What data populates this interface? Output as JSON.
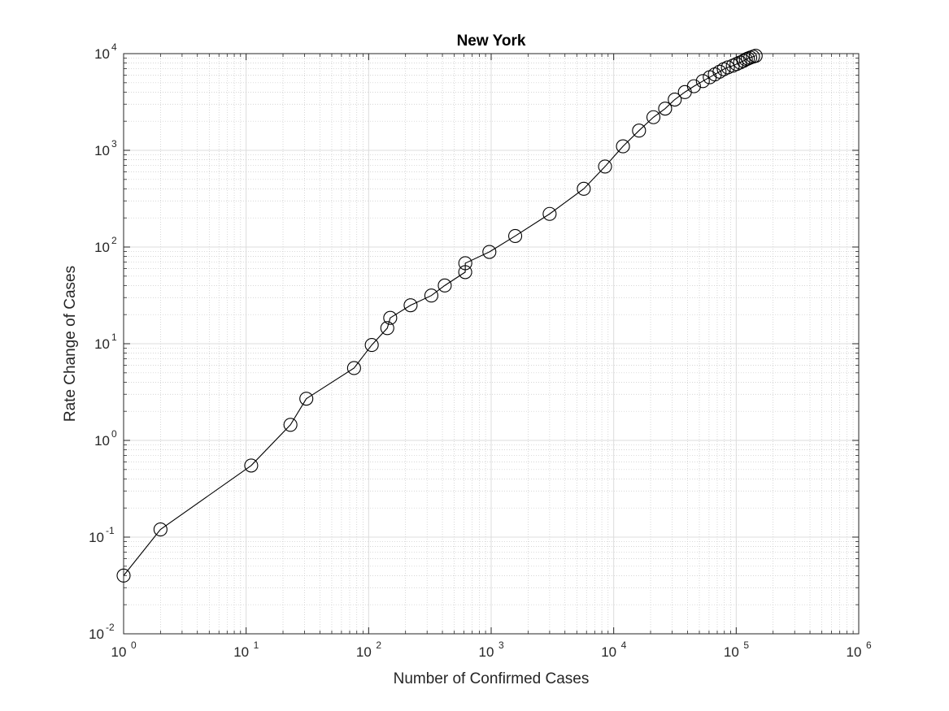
{
  "chart_data": {
    "type": "line",
    "title": "New York",
    "xlabel": "Number of Confirmed Cases",
    "ylabel": "Rate Change of Cases",
    "xscale": "log",
    "yscale": "log",
    "xlim": [
      1,
      1000000
    ],
    "ylim": [
      0.01,
      10000
    ],
    "grid": "on (major and minor)",
    "marker": "open circle",
    "line_color": "#000000",
    "x_ticks": [
      {
        "base": "10",
        "exp": "0"
      },
      {
        "base": "10",
        "exp": "1"
      },
      {
        "base": "10",
        "exp": "2"
      },
      {
        "base": "10",
        "exp": "3"
      },
      {
        "base": "10",
        "exp": "4"
      },
      {
        "base": "10",
        "exp": "5"
      },
      {
        "base": "10",
        "exp": "6"
      }
    ],
    "y_ticks": [
      {
        "base": "10",
        "exp": "-2"
      },
      {
        "base": "10",
        "exp": "-1"
      },
      {
        "base": "10",
        "exp": "0"
      },
      {
        "base": "10",
        "exp": "1"
      },
      {
        "base": "10",
        "exp": "2"
      },
      {
        "base": "10",
        "exp": "3"
      },
      {
        "base": "10",
        "exp": "4"
      }
    ],
    "series": [
      {
        "x": [
          1,
          2,
          11,
          23,
          31,
          76,
          106,
          142,
          150,
          220,
          325,
          418,
          614,
          615,
          967,
          1571,
          3000,
          5700,
          8500,
          11900,
          16100,
          21100,
          26300,
          31500,
          38100,
          45200,
          53400,
          60800,
          66900,
          73100,
          79100,
          85500,
          93800,
          100600,
          107600,
          114500,
          119800,
          124600,
          130200,
          137100,
          144200
        ],
        "y": [
          0.04,
          0.12,
          0.55,
          1.45,
          2.7,
          5.6,
          9.7,
          14.5,
          18.5,
          25,
          31.5,
          40,
          55,
          68,
          89,
          130,
          220,
          400,
          680,
          1100,
          1600,
          2200,
          2700,
          3350,
          4000,
          4600,
          5200,
          5700,
          6100,
          6500,
          6900,
          7200,
          7500,
          7800,
          8100,
          8400,
          8700,
          8900,
          9100,
          9300,
          9500
        ]
      }
    ]
  }
}
